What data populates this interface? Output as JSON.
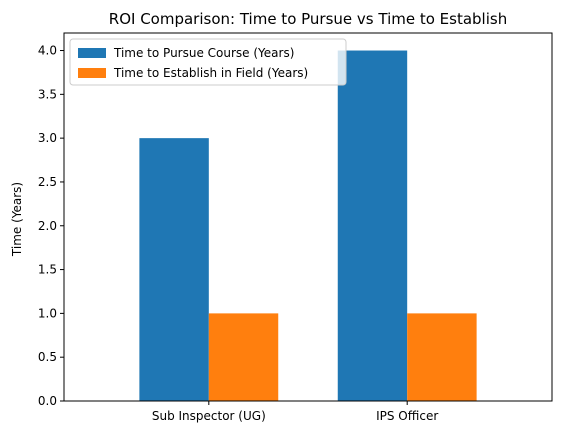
{
  "chart_data": {
    "type": "bar",
    "title": "ROI Comparison: Time to Pursue vs Time to Establish",
    "xlabel": "",
    "ylabel": "Time (Years)",
    "categories": [
      "Sub Inspector (UG)",
      "IPS Officer"
    ],
    "series": [
      {
        "name": "Time to Pursue Course (Years)",
        "color": "#1f77b4",
        "values": [
          3.0,
          4.0
        ]
      },
      {
        "name": "Time to Establish in Field (Years)",
        "color": "#ff7f0e",
        "values": [
          1.0,
          1.0
        ]
      }
    ],
    "ylim": [
      0,
      4.2
    ],
    "yticks": [
      0.0,
      0.5,
      1.0,
      1.5,
      2.0,
      2.5,
      3.0,
      3.5,
      4.0
    ],
    "ytick_labels": [
      "0.0",
      "0.5",
      "1.0",
      "1.5",
      "2.0",
      "2.5",
      "3.0",
      "3.5",
      "4.0"
    ],
    "grid": false,
    "legend_position": "top-left"
  }
}
